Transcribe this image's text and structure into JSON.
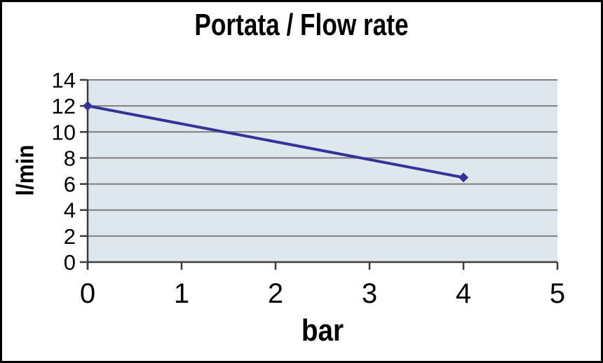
{
  "chart_data": {
    "type": "line",
    "title": "Portata / Flow rate",
    "xlabel": "bar",
    "ylabel": "l/min",
    "xlim": [
      0,
      5
    ],
    "ylim": [
      0,
      14
    ],
    "xticks": [
      0,
      1,
      2,
      3,
      4,
      5
    ],
    "yticks": [
      0,
      2,
      4,
      6,
      8,
      10,
      12,
      14
    ],
    "grid": "horizontal",
    "legend_position": "none",
    "series": [
      {
        "name": "Portata / Flow rate",
        "x": [
          0,
          4
        ],
        "y": [
          12,
          6.5
        ],
        "marker": "diamond"
      }
    ],
    "colors": {
      "line": "#333399",
      "plot_background": "#dfe7ee",
      "gridline": "#7f7f7f",
      "axis": "#3c3c3c",
      "text": "#000000",
      "page_background": "#ffffff",
      "border": "#000000"
    }
  }
}
